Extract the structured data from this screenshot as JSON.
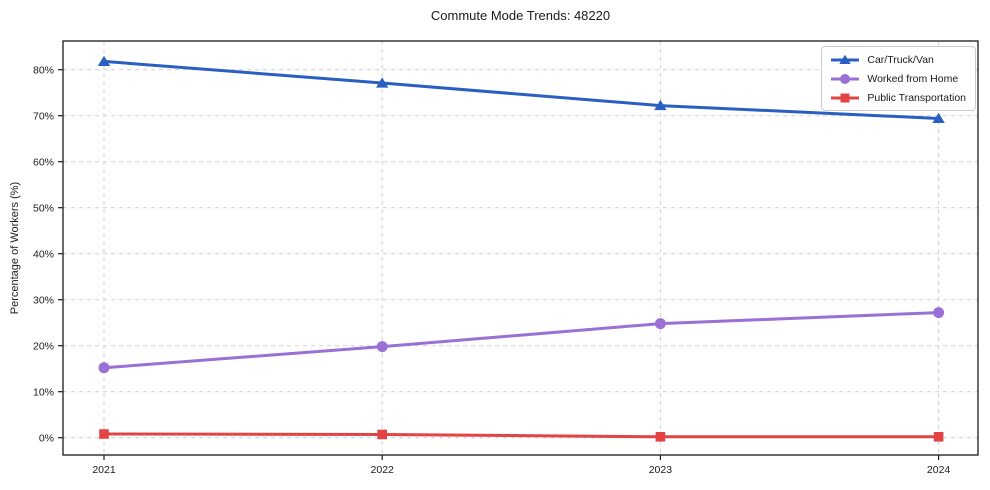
{
  "chart_data": {
    "type": "line",
    "title": "Commute Mode Trends: 48220",
    "xlabel": "",
    "ylabel": "Percentage of Workers (%)",
    "categories": [
      "2021",
      "2022",
      "2023",
      "2024"
    ],
    "series": [
      {
        "name": "Car/Truck/Van",
        "marker": "triangle",
        "color": "#2a5fc2",
        "values": [
          81.8,
          77.1,
          72.2,
          69.4
        ]
      },
      {
        "name": "Worked from Home",
        "marker": "circle",
        "color": "#9a6fd6",
        "values": [
          15.2,
          19.8,
          24.8,
          27.2
        ]
      },
      {
        "name": "Public Transportation",
        "marker": "square",
        "color": "#e24343",
        "values": [
          0.8,
          0.7,
          0.2,
          0.2
        ]
      }
    ],
    "ytick_labels": [
      "0%",
      "10%",
      "20%",
      "30%",
      "40%",
      "50%",
      "60%",
      "70%",
      "80%"
    ],
    "ytick_values": [
      0,
      10,
      20,
      30,
      40,
      50,
      60,
      70,
      80
    ],
    "ylim": [
      -3.8,
      86.2
    ],
    "grid": true,
    "grid_color": "#cfcfcf",
    "frame_color": "#1a1a1a",
    "legend_position": "upper right",
    "legend_border_color": "#cccccc"
  }
}
